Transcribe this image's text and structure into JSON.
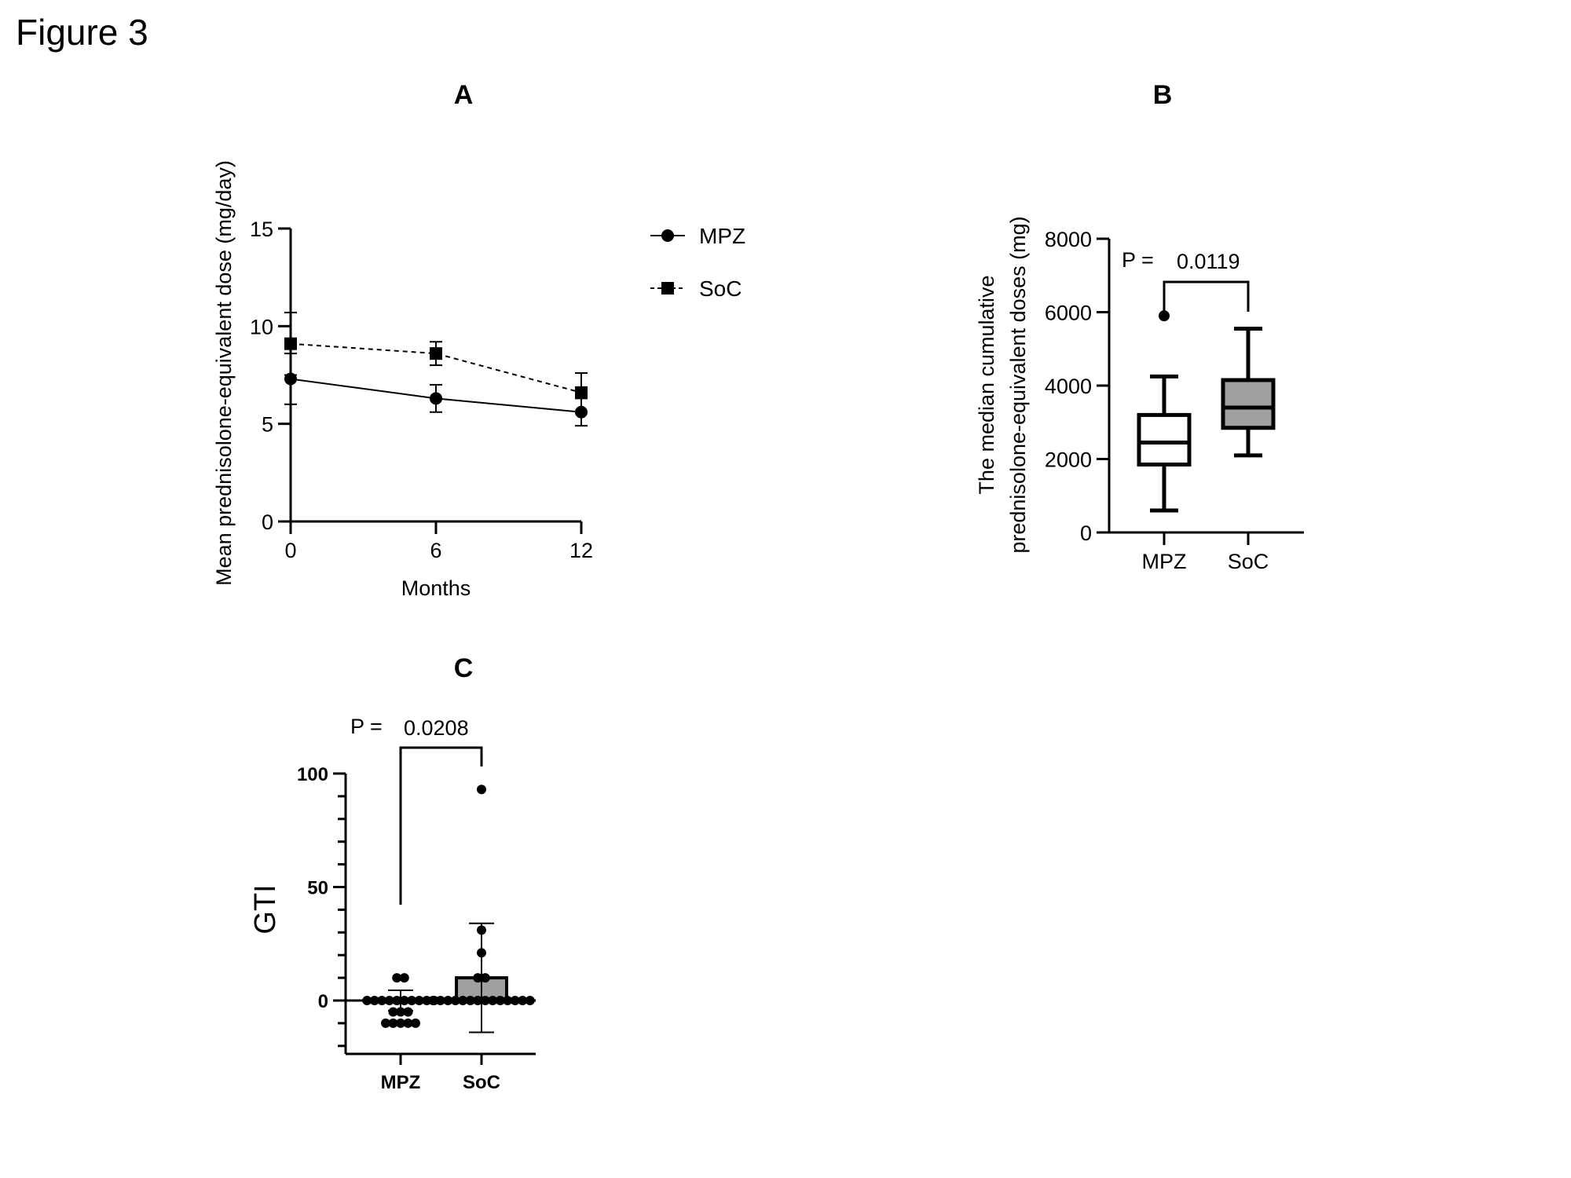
{
  "figure_title": "Figure 3",
  "chart_data": [
    {
      "panel": "A",
      "type": "line",
      "title": "",
      "xlabel": "Months",
      "ylabel": "Mean prednisolone-equivalent dose (mg/day)",
      "x": [
        0,
        6,
        12
      ],
      "xticks": [
        "0",
        "6",
        "12"
      ],
      "yticks": [
        "0",
        "5",
        "10",
        "15"
      ],
      "ylim": [
        0,
        15
      ],
      "grid": false,
      "legend_position": "right",
      "series": [
        {
          "name": "MPZ",
          "marker": "circle",
          "line": "solid",
          "values": [
            7.3,
            6.3,
            5.6
          ],
          "error": [
            1.3,
            0.7,
            0.7
          ]
        },
        {
          "name": "SoC",
          "marker": "square",
          "line": "dashed",
          "values": [
            9.1,
            8.6,
            6.6
          ],
          "error": [
            1.6,
            0.6,
            1.0
          ]
        }
      ]
    },
    {
      "panel": "B",
      "type": "box",
      "title": "",
      "ylabel": "The median cumulative\nprednisolone-equivalent doses (mg)",
      "categories": [
        "MPZ",
        "SoC"
      ],
      "yticks": [
        "0",
        "2000",
        "4000",
        "6000",
        "8000"
      ],
      "ylim": [
        0,
        8000
      ],
      "boxes": [
        {
          "name": "MPZ",
          "min": 600,
          "q1": 1850,
          "median": 2450,
          "q3": 3200,
          "max": 4250,
          "outliers": [
            5900
          ],
          "fill": "#ffffff"
        },
        {
          "name": "SoC",
          "min": 2100,
          "q1": 2850,
          "median": 3400,
          "q3": 4150,
          "max": 5550,
          "outliers": [],
          "fill": "#a0a0a0"
        }
      ],
      "p_value_label": "P =",
      "p_value": "0.0119"
    },
    {
      "panel": "C",
      "type": "scatter",
      "title": "",
      "ylabel": "GTI",
      "categories": [
        "MPZ",
        "SoC"
      ],
      "yticks": [
        "0",
        "50",
        "100"
      ],
      "ylim": [
        -25,
        100
      ],
      "bars": [
        {
          "name": "MPZ",
          "mean": 0,
          "sd": 4.5,
          "fill": "#ffffff"
        },
        {
          "name": "SoC",
          "mean": 10,
          "sd": 24,
          "fill": "#a0a0a0"
        }
      ],
      "points": [
        {
          "group": "MPZ",
          "values": [
            10,
            10,
            0,
            0,
            0,
            0,
            0,
            0,
            0,
            0,
            0,
            0,
            -5,
            -5,
            -5,
            -10,
            -10,
            -10,
            -10,
            -10
          ]
        },
        {
          "group": "SoC",
          "values": [
            93,
            31,
            21,
            10,
            10,
            0,
            0,
            0,
            0,
            0,
            0,
            0,
            0,
            0,
            0,
            0,
            0,
            0,
            0
          ]
        }
      ],
      "p_value_label": "P =",
      "p_value": "0.0208"
    }
  ]
}
